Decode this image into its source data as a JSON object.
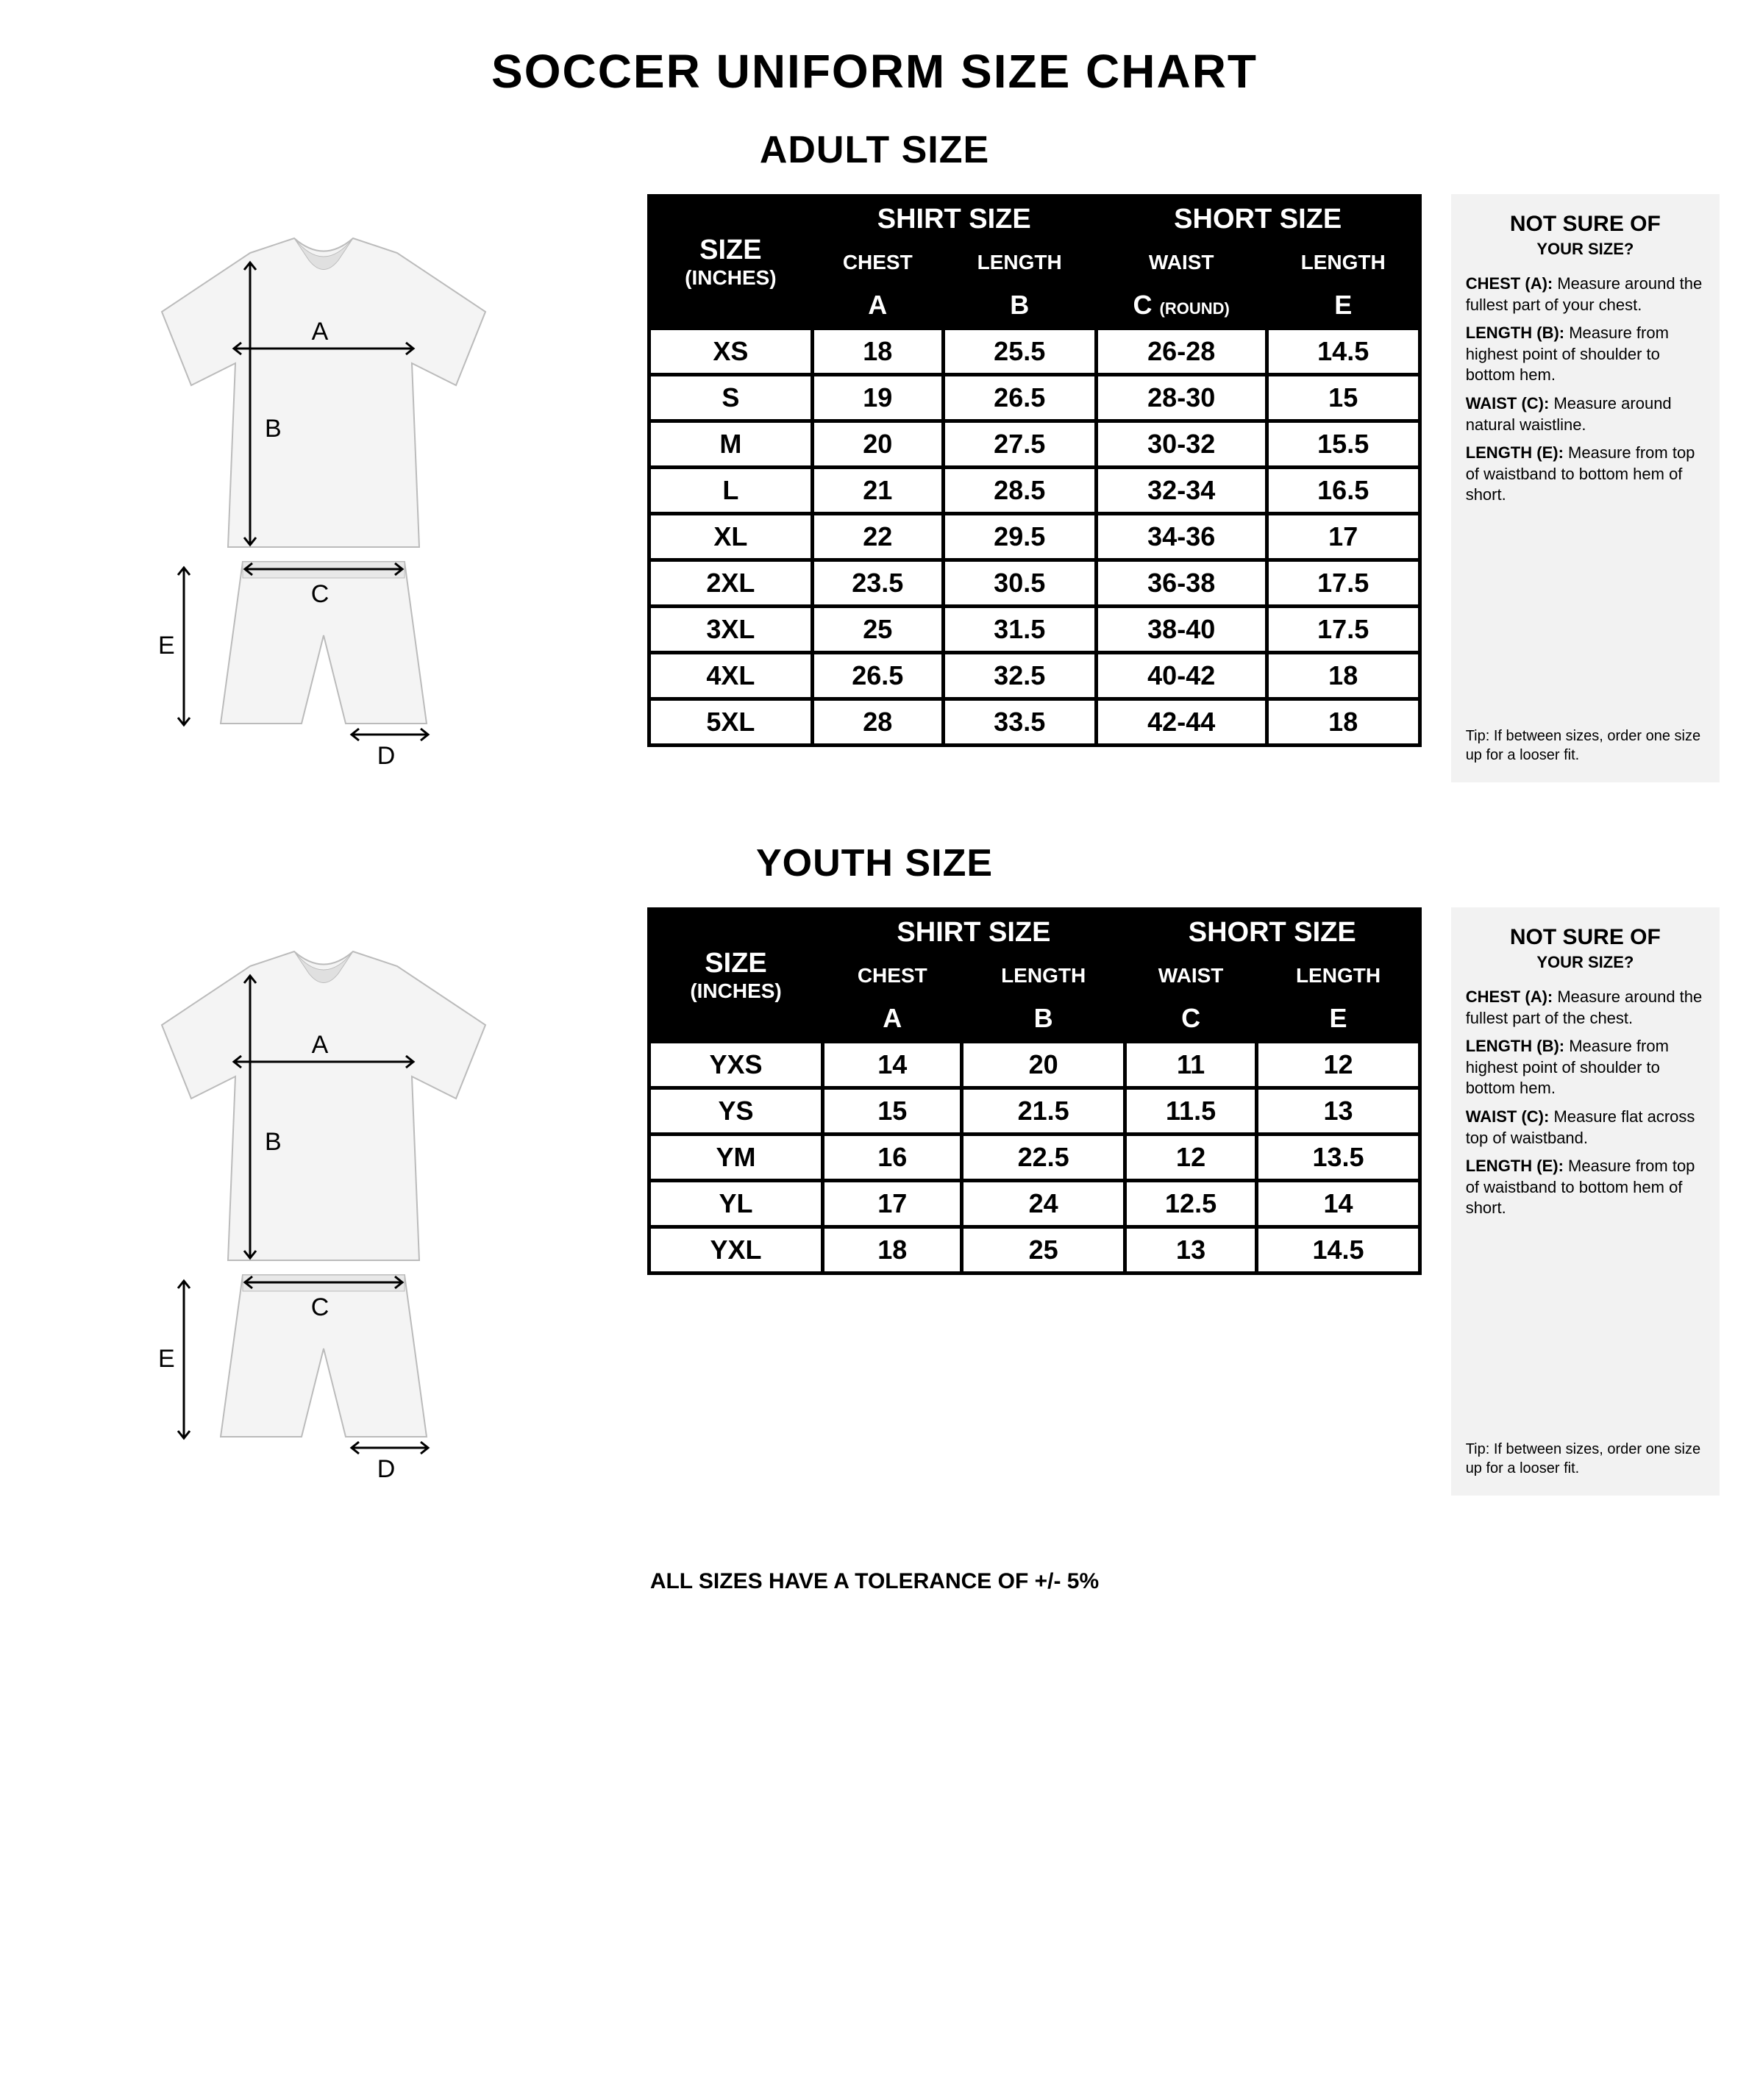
{
  "doc_title": "SOCCER UNIFORM SIZE CHART",
  "colors": {
    "fg": "#000000",
    "bg": "#ffffff",
    "side_bg": "#f2f2f2",
    "garment_shade": "#e6e6e6"
  },
  "diagram_labels": {
    "A": "A",
    "B": "B",
    "C": "C",
    "D": "D",
    "E": "E"
  },
  "adult": {
    "title": "ADULT SIZE",
    "header": {
      "size": "SIZE",
      "unit": "(INCHES)",
      "shirt": "SHIRT SIZE",
      "short": "SHORT SIZE",
      "chest": "CHEST",
      "length": "LENGTH",
      "waist": "WAIST",
      "A": "A",
      "B": "B",
      "C": "C",
      "C_suffix": "(ROUND)",
      "E": "E"
    },
    "rows": [
      {
        "size": "XS",
        "a": "18",
        "b": "25.5",
        "c": "26-28",
        "e": "14.5"
      },
      {
        "size": "S",
        "a": "19",
        "b": "26.5",
        "c": "28-30",
        "e": "15"
      },
      {
        "size": "M",
        "a": "20",
        "b": "27.5",
        "c": "30-32",
        "e": "15.5"
      },
      {
        "size": "L",
        "a": "21",
        "b": "28.5",
        "c": "32-34",
        "e": "16.5"
      },
      {
        "size": "XL",
        "a": "22",
        "b": "29.5",
        "c": "34-36",
        "e": "17"
      },
      {
        "size": "2XL",
        "a": "23.5",
        "b": "30.5",
        "c": "36-38",
        "e": "17.5"
      },
      {
        "size": "3XL",
        "a": "25",
        "b": "31.5",
        "c": "38-40",
        "e": "17.5"
      },
      {
        "size": "4XL",
        "a": "26.5",
        "b": "32.5",
        "c": "40-42",
        "e": "18"
      },
      {
        "size": "5XL",
        "a": "28",
        "b": "33.5",
        "c": "42-44",
        "e": "18"
      }
    ],
    "side": {
      "title": "NOT SURE OF",
      "sub": "YOUR SIZE?",
      "lines": [
        {
          "label": "CHEST (A):",
          "text": "Measure around the fullest part of your chest."
        },
        {
          "label": "LENGTH (B):",
          "text": "Measure from highest point of shoulder to bottom hem."
        },
        {
          "label": "WAIST (C):",
          "text": "Measure around natural waistline."
        },
        {
          "label": "LENGTH (E):",
          "text": "Measure from top of waistband to bottom hem of short."
        }
      ],
      "note": "Tip: If between sizes, order one size up for a looser fit."
    }
  },
  "youth": {
    "title": "YOUTH SIZE",
    "header": {
      "size": "SIZE",
      "unit": "(INCHES)",
      "shirt": "SHIRT SIZE",
      "short": "SHORT SIZE",
      "chest": "CHEST",
      "length": "LENGTH",
      "waist": "WAIST",
      "A": "A",
      "B": "B",
      "C": "C",
      "E": "E"
    },
    "rows": [
      {
        "size": "YXS",
        "a": "14",
        "b": "20",
        "c": "11",
        "e": "12"
      },
      {
        "size": "YS",
        "a": "15",
        "b": "21.5",
        "c": "11.5",
        "e": "13"
      },
      {
        "size": "YM",
        "a": "16",
        "b": "22.5",
        "c": "12",
        "e": "13.5"
      },
      {
        "size": "YL",
        "a": "17",
        "b": "24",
        "c": "12.5",
        "e": "14"
      },
      {
        "size": "YXL",
        "a": "18",
        "b": "25",
        "c": "13",
        "e": "14.5"
      }
    ],
    "side": {
      "title": "NOT SURE OF",
      "sub": "YOUR SIZE?",
      "lines": [
        {
          "label": "CHEST (A):",
          "text": "Measure around the fullest part of the chest."
        },
        {
          "label": "LENGTH (B):",
          "text": "Measure from highest point of shoulder to bottom hem."
        },
        {
          "label": "WAIST (C):",
          "text": "Measure flat across top of waistband."
        },
        {
          "label": "LENGTH (E):",
          "text": "Measure from top of waistband to bottom hem of short."
        }
      ],
      "note": "Tip: If between sizes, order one size up for a looser fit."
    }
  },
  "footer": "ALL SIZES HAVE A TOLERANCE OF +/- 5%"
}
